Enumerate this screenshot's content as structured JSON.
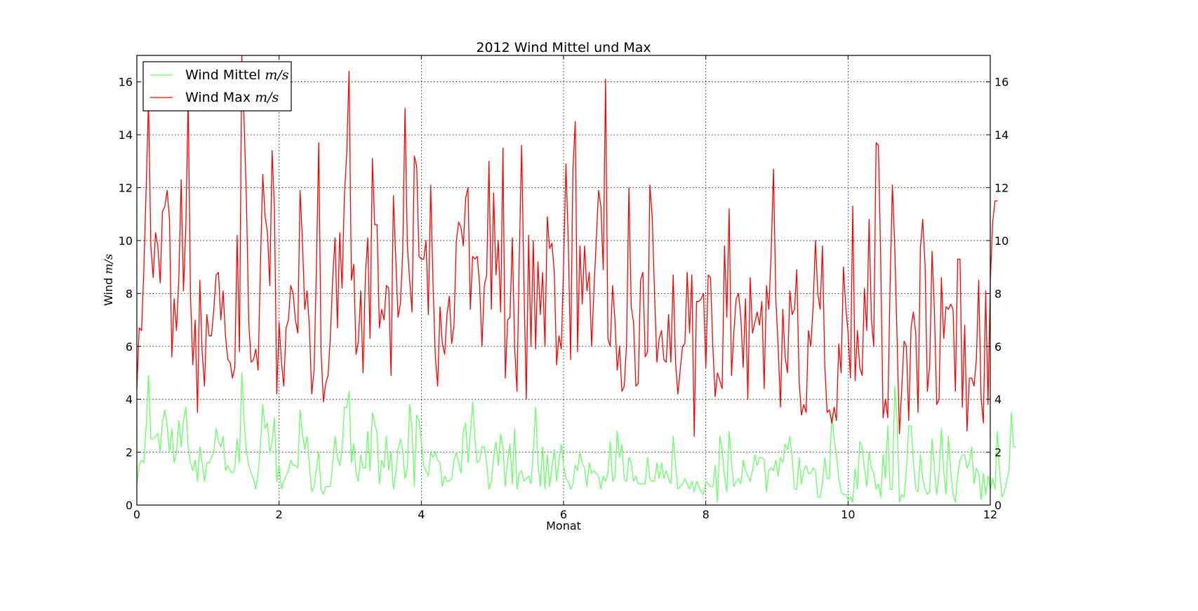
{
  "chart_data": {
    "type": "line",
    "title": "2012 Wind Mittel und Max",
    "xlabel": "Monat",
    "ylabel_text": "Wind",
    "ylabel_unit": "m/s",
    "xlim": [
      0,
      12
    ],
    "ylim": [
      0,
      17
    ],
    "xticks": [
      0,
      2,
      4,
      6,
      8,
      10,
      12
    ],
    "yticks": [
      0,
      2,
      4,
      6,
      8,
      10,
      12,
      14,
      16
    ],
    "grid": true,
    "legend_position": "upper left",
    "x_start": 0.0,
    "x_step": 0.03279,
    "series": [
      {
        "name_text": "Wind Mittel",
        "name_unit": "m/s",
        "color": "#66ff66",
        "values": [
          0.8,
          1.5,
          1.7,
          1.6,
          3.0,
          4.9,
          2.5,
          2.5,
          2.6,
          2.7,
          2.0,
          3.2,
          3.6,
          3.0,
          2.0,
          2.9,
          1.6,
          2.0,
          3.2,
          2.2,
          3.2,
          3.7,
          2.2,
          1.6,
          1.3,
          1.7,
          0.9,
          2.2,
          1.6,
          0.9,
          1.6,
          1.6,
          1.8,
          2.0,
          2.9,
          2.4,
          2.2,
          2.6,
          1.3,
          1.5,
          1.3,
          1.2,
          1.4,
          2.5,
          1.6,
          5.0,
          3.2,
          2.0,
          1.5,
          1.2,
          1.0,
          0.6,
          1.2,
          2.3,
          3.8,
          2.9,
          3.1,
          2.0,
          2.4,
          3.3,
          0.9,
          1.5,
          0.6,
          0.9,
          1.1,
          1.3,
          1.7,
          1.5,
          1.5,
          1.4,
          3.6,
          2.7,
          2.1,
          2.6,
          1.5,
          0.5,
          0.7,
          1.4,
          2.0,
          0.6,
          0.4,
          0.7,
          0.7,
          0.7,
          1.6,
          2.6,
          1.8,
          1.5,
          2.1,
          3.7,
          3.7,
          4.3,
          1.6,
          2.3,
          1.2,
          0.9,
          1.9,
          1.4,
          1.4,
          2.8,
          1.3,
          3.5,
          3.1,
          2.7,
          0.8,
          1.7,
          1.4,
          2.6,
          1.3,
          2.0,
          0.6,
          1.2,
          2.1,
          2.5,
          2.1,
          1.0,
          1.4,
          3.8,
          2.8,
          0.7,
          3.4,
          3.2,
          2.4,
          1.5,
          1.3,
          1.1,
          2.0,
          1.8,
          2.0,
          1.7,
          1.6,
          0.7,
          1.1,
          0.9,
          0.9,
          1.0,
          1.7,
          2.0,
          1.6,
          1.2,
          2.8,
          3.1,
          1.6,
          2.7,
          3.9,
          2.5,
          1.6,
          1.7,
          2.2,
          2.2,
          1.6,
          0.6,
          0.9,
          1.8,
          2.4,
          1.5,
          2.7,
          2.2,
          0.7,
          1.7,
          2.3,
          0.8,
          2.9,
          0.6,
          1.2,
          1.3,
          0.9,
          1.0,
          1.1,
          0.8,
          2.0,
          3.7,
          1.6,
          0.7,
          2.2,
          0.6,
          1.9,
          0.7,
          1.4,
          2.1,
          0.9,
          1.7,
          2.3,
          1.5,
          1.0,
          0.9,
          0.6,
          0.8,
          1.5,
          1.3,
          2.0,
          1.6,
          1.4,
          0.7,
          1.6,
          1.2,
          1.3,
          1.2,
          1.1,
          0.6,
          1.1,
          0.9,
          1.2,
          2.4,
          0.9,
          1.1,
          2.8,
          1.8,
          2.3,
          1.0,
          0.9,
          1.8,
          1.6,
          0.9,
          1.1,
          0.8,
          0.8,
          0.8,
          0.8,
          1.8,
          1.0,
          0.9,
          0.9,
          1.6,
          1.0,
          1.6,
          1.0,
          1.3,
          1.0,
          0.8,
          2.6,
          1.5,
          0.6,
          0.7,
          0.8,
          1.0,
          0.8,
          0.6,
          0.9,
          0.5,
          0.9,
          0.7,
          0.5,
          0.4,
          0.9,
          0.8,
          0.7,
          0.7,
          1.5,
          0.1,
          2.6,
          2.1,
          1.1,
          0.5,
          2.8,
          1.6,
          0.7,
          0.9,
          1.0,
          0.8,
          1.7,
          1.3,
          1.1,
          0.9,
          1.3,
          1.9,
          1.5,
          1.8,
          1.8,
          1.7,
          0.5,
          1.3,
          1.4,
          1.3,
          1.7,
          1.1,
          1.8,
          1.6,
          2.3,
          2.1,
          2.6,
          1.8,
          0.6,
          0.6,
          1.8,
          0.8,
          1.3,
          1.5,
          1.2,
          1.2,
          1.4,
          1.3,
          0.3,
          0.3,
          0.8,
          1.8,
          1.0,
          1.0,
          3.5,
          2.5,
          1.9,
          1.0,
          0.5,
          0.4,
          0.4,
          0.2,
          0.3,
          0.1,
          1.4,
          0.6,
          2.4,
          2.2,
          1.4,
          0.7,
          2.0,
          1.4,
          1.2,
          0.6,
          0.8,
          0.3,
          1.9,
          1.0,
          3.0,
          0.6,
          0.6,
          4.5,
          3.3,
          0.1,
          0.4,
          0.3,
          1.3,
          3.0,
          3.0,
          1.7,
          0.6,
          0.5,
          1.9,
          1.0,
          0.6,
          0.4,
          0.5,
          2.5,
          1.4,
          0.4,
          1.2,
          2.9,
          1.3,
          0.4,
          2.6,
          1.3,
          0.4,
          0.1,
          1.1,
          1.7,
          1.9,
          1.9,
          1.4,
          1.6,
          2.2,
          0.8,
          1.4,
          1.2,
          0.2,
          1.2,
          0.4,
          1.1,
          0.6,
          1.0,
          0.6,
          2.8,
          1.2,
          0.3,
          0.5,
          0.9,
          1.3,
          3.5,
          2.2,
          2.2
        ]
      },
      {
        "name_text": "Wind Max",
        "name_unit": "m/s",
        "color": "#ff0000",
        "values": [
          4.4,
          6.7,
          6.6,
          8.9,
          12.0,
          15.3,
          9.8,
          8.6,
          10.3,
          9.8,
          8.4,
          11.1,
          11.3,
          11.9,
          10.8,
          5.6,
          7.8,
          6.6,
          8.6,
          12.3,
          8.1,
          10.5,
          15.4,
          7.9,
          5.3,
          7.0,
          3.5,
          8.5,
          5.8,
          4.5,
          7.2,
          6.4,
          6.4,
          7.4,
          8.7,
          8.8,
          7.0,
          8.1,
          6.4,
          5.5,
          5.4,
          4.8,
          5.2,
          10.2,
          5.8,
          17.0,
          14.5,
          11.5,
          6.9,
          5.4,
          5.5,
          5.9,
          5.1,
          9.1,
          12.5,
          10.9,
          10.3,
          8.3,
          13.4,
          11.2,
          4.2,
          6.9,
          5.4,
          4.5,
          6.7,
          7.0,
          8.3,
          8.0,
          7.0,
          6.5,
          11.9,
          10.0,
          7.4,
          8.1,
          6.7,
          4.2,
          5.1,
          9.0,
          13.7,
          5.8,
          3.9,
          4.6,
          4.9,
          6.4,
          8.6,
          10.1,
          6.7,
          10.3,
          8.2,
          11.7,
          13.3,
          16.4,
          8.5,
          9.1,
          5.7,
          6.2,
          8.1,
          5.0,
          8.7,
          10.1,
          6.3,
          13.1,
          10.6,
          10.6,
          6.7,
          7.4,
          7.0,
          8.3,
          8.2,
          4.9,
          11.7,
          9.4,
          7.1,
          7.6,
          9.5,
          15.0,
          9.8,
          8.5,
          7.3,
          13.2,
          12.8,
          9.4,
          9.3,
          9.3,
          10.0,
          7.2,
          12.1,
          8.4,
          5.6,
          4.5,
          7.5,
          6.1,
          5.7,
          7.2,
          7.9,
          6.1,
          6.8,
          10.0,
          10.7,
          10.5,
          9.8,
          11.6,
          12.0,
          7.4,
          9.4,
          9.3,
          9.4,
          8.3,
          6.0,
          8.3,
          8.7,
          13.0,
          7.4,
          11.8,
          8.7,
          10.0,
          7.3,
          13.5,
          4.8,
          7.0,
          7.1,
          10.1,
          6.0,
          4.3,
          9.4,
          13.6,
          8.3,
          4.0,
          10.2,
          6.0,
          10.0,
          5.9,
          9.2,
          7.2,
          8.8,
          6.0,
          10.9,
          9.7,
          9.9,
          8.8,
          5.3,
          6.4,
          5.9,
          9.1,
          12.9,
          10.0,
          5.5,
          12.7,
          14.5,
          5.8,
          9.8,
          7.6,
          9.8,
          8.1,
          8.8,
          6.0,
          8.1,
          10.0,
          11.9,
          11.3,
          8.9,
          16.1,
          6.3,
          6.0,
          8.3,
          7.0,
          5.1,
          6.0,
          4.3,
          4.5,
          6.1,
          12.0,
          7.5,
          6.9,
          4.5,
          4.6,
          8.5,
          8.8,
          5.6,
          5.8,
          12.1,
          10.9,
          8.0,
          5.4,
          6.3,
          6.6,
          5.5,
          5.4,
          7.2,
          5.4,
          8.7,
          5.4,
          4.2,
          5.1,
          6.0,
          6.1,
          8.8,
          6.5,
          8.7,
          2.6,
          7.7,
          7.7,
          7.8,
          8.0,
          5.2,
          8.7,
          8.6,
          6.0,
          4.1,
          5.0,
          4.7,
          4.4,
          9.8,
          7.1,
          11.2,
          4.9,
          6.5,
          7.8,
          8.0,
          7.1,
          5.2,
          7.8,
          4.0,
          8.6,
          6.5,
          6.9,
          7.3,
          6.8,
          7.7,
          4.4,
          8.3,
          7.4,
          9.5,
          12.7,
          7.8,
          6.0,
          3.7,
          7.4,
          5.6,
          5.0,
          8.1,
          7.2,
          7.4,
          8.9,
          4.7,
          3.4,
          3.8,
          3.5,
          6.6,
          6.0,
          7.5,
          10.0,
          8.0,
          7.4,
          9.8,
          5.3,
          3.5,
          3.6,
          3.1,
          3.7,
          3.2,
          6.1,
          5.0,
          9.0,
          7.5,
          6.5,
          4.8,
          11.3,
          4.7,
          6.6,
          5.2,
          4.9,
          8.2,
          6.6,
          10.8,
          7.0,
          6.0,
          13.7,
          13.6,
          9.2,
          3.3,
          4.0,
          3.3,
          8.3,
          12.1,
          9.8,
          6.3,
          2.7,
          4.4,
          6.2,
          6.0,
          3.2,
          6.7,
          7.3,
          6.5,
          3.5,
          9.7,
          10.8,
          9.1,
          4.3,
          5.3,
          9.6,
          7.4,
          3.8,
          4.0,
          8.6,
          6.3,
          7.5,
          7.4,
          7.6,
          7.4,
          4.3,
          9.3,
          9.3,
          3.7,
          6.8,
          2.8,
          4.8,
          4.8,
          4.5,
          5.5,
          8.5,
          4.1,
          3.1,
          8.1,
          3.8,
          8.5,
          10.7,
          11.5,
          11.5
        ]
      }
    ]
  }
}
